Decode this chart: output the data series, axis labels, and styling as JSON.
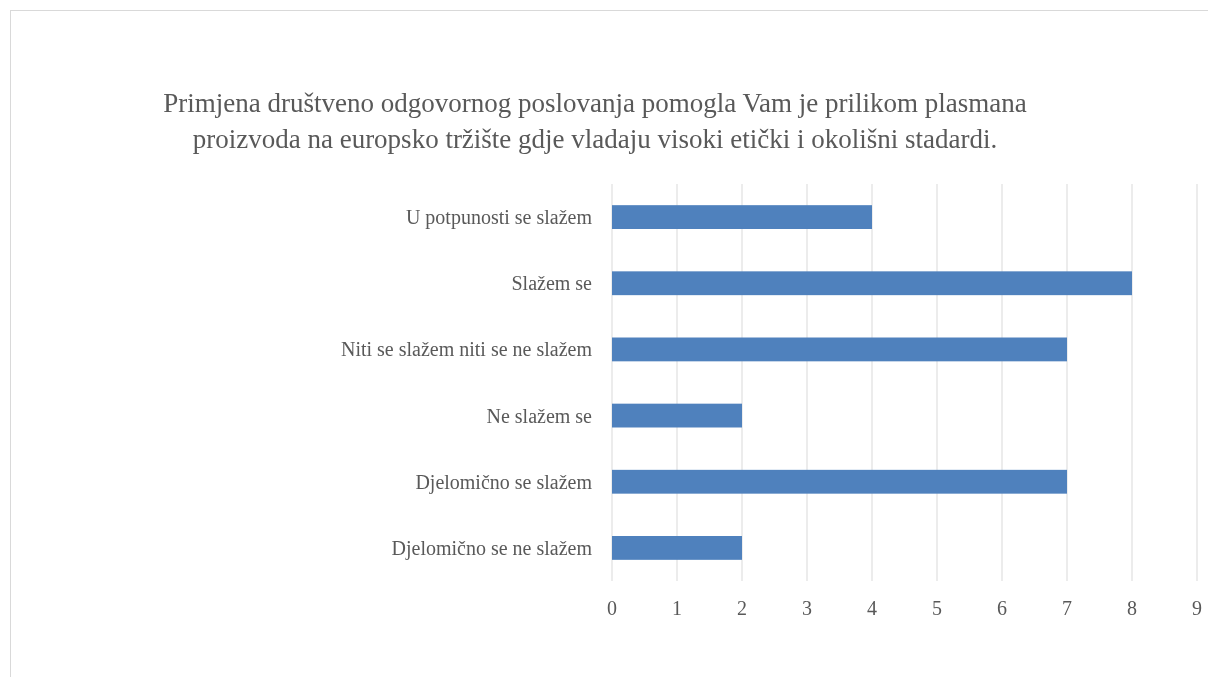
{
  "chart_data": {
    "type": "bar",
    "orientation": "horizontal",
    "title": "Primjena društveno odgovornog poslovanja pomogla Vam je prilikom plasmana proizvoda na europsko tržište gdje vladaju visoki etički i okolišni stadardi.",
    "categories": [
      "U potpunosti se slažem",
      "Slažem se",
      "Niti se slažem niti se ne slažem",
      "Ne slažem se",
      "Djelomično se slažem",
      "Djelomično se ne slažem"
    ],
    "values": [
      4,
      8,
      7,
      2,
      7,
      2
    ],
    "color": "#4f81bd",
    "xlim": [
      0,
      9
    ],
    "xticks": [
      0,
      1,
      2,
      3,
      4,
      5,
      6,
      7,
      8,
      9
    ],
    "grid": "x"
  }
}
